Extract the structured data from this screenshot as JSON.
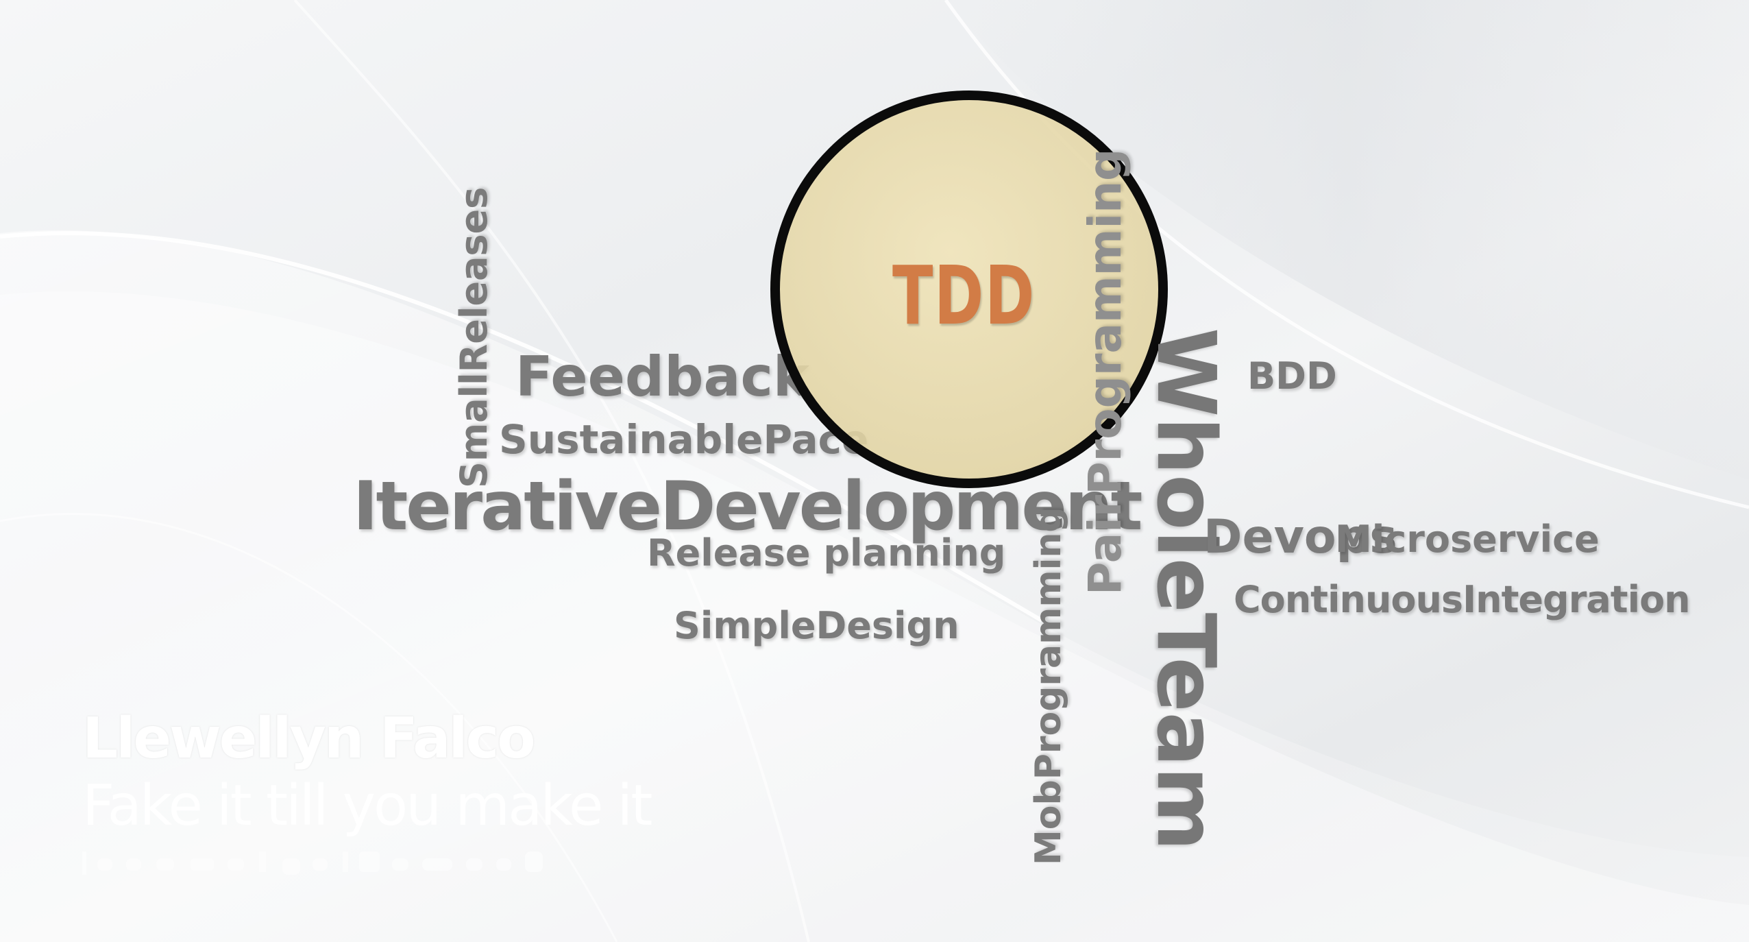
{
  "center_word": "TDD",
  "words": {
    "small_releases": "SmallReleases",
    "feedback": "Feedback",
    "sustainable_pace": "SustainablePace",
    "iterative_development": "IterativeDevelopment",
    "release_planning": "Release planning",
    "simple_design": "SimpleDesign",
    "mob_programming": "MobProgramming",
    "pair_programming": "PairProgramming",
    "whole_team": "WholeTeam",
    "bdd": "BDD",
    "devops": "Devops",
    "microservice": "Microservice",
    "continuous_integration": "ContinuousIntegration"
  },
  "speaker": {
    "name": "Llewellyn Falco",
    "talk_title": "Fake it till you make it"
  },
  "colors": {
    "word_gray": "#7b7b7b",
    "tdd_orange": "#d27c46",
    "lens_fill": "#e8dcaf",
    "lens_border": "#0b0b0b"
  }
}
